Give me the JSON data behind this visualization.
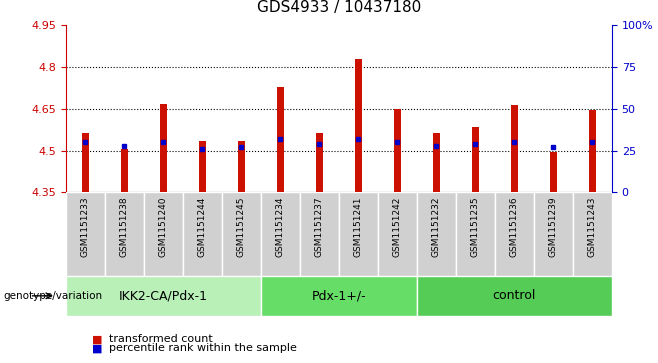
{
  "title": "GDS4933 / 10437180",
  "samples": [
    "GSM1151233",
    "GSM1151238",
    "GSM1151240",
    "GSM1151244",
    "GSM1151245",
    "GSM1151234",
    "GSM1151237",
    "GSM1151241",
    "GSM1151242",
    "GSM1151232",
    "GSM1151235",
    "GSM1151236",
    "GSM1151239",
    "GSM1151243"
  ],
  "bar_tops": [
    4.565,
    4.505,
    4.668,
    4.535,
    4.535,
    4.73,
    4.565,
    4.83,
    4.648,
    4.565,
    4.585,
    4.665,
    4.495,
    4.645
  ],
  "bar_base": 4.35,
  "percentile_ranks": [
    30,
    28,
    30,
    26,
    27,
    32,
    29,
    32,
    30,
    28,
    29,
    30,
    27,
    30
  ],
  "groups": [
    {
      "label": "IKK2-CA/Pdx-1",
      "start": 0,
      "end": 5,
      "color": "#b8f0b8"
    },
    {
      "label": "Pdx-1+/-",
      "start": 5,
      "end": 9,
      "color": "#66dd66"
    },
    {
      "label": "control",
      "start": 9,
      "end": 14,
      "color": "#55cc55"
    }
  ],
  "ylim_left": [
    4.35,
    4.95
  ],
  "ylim_right": [
    0,
    100
  ],
  "yticks_left": [
    4.35,
    4.5,
    4.65,
    4.8,
    4.95
  ],
  "yticks_right": [
    0,
    25,
    50,
    75,
    100
  ],
  "bar_color": "#cc1100",
  "dot_color": "#0000cc",
  "bg_color": "#ffffff",
  "plot_bg": "#ffffff",
  "grid_color": "#000000",
  "left_axis_color": "#cc0000",
  "right_axis_color": "#0000cc",
  "genotype_label": "genotype/variation",
  "legend_items": [
    {
      "label": "transformed count",
      "color": "#cc1100"
    },
    {
      "label": "percentile rank within the sample",
      "color": "#0000cc"
    }
  ],
  "title_fontsize": 11,
  "tick_fontsize": 8,
  "sample_fontsize": 6.5,
  "group_label_fontsize": 9,
  "legend_fontsize": 8,
  "bar_width": 0.18,
  "cell_bg": "#d0d0d0",
  "cell_border": "#ffffff"
}
